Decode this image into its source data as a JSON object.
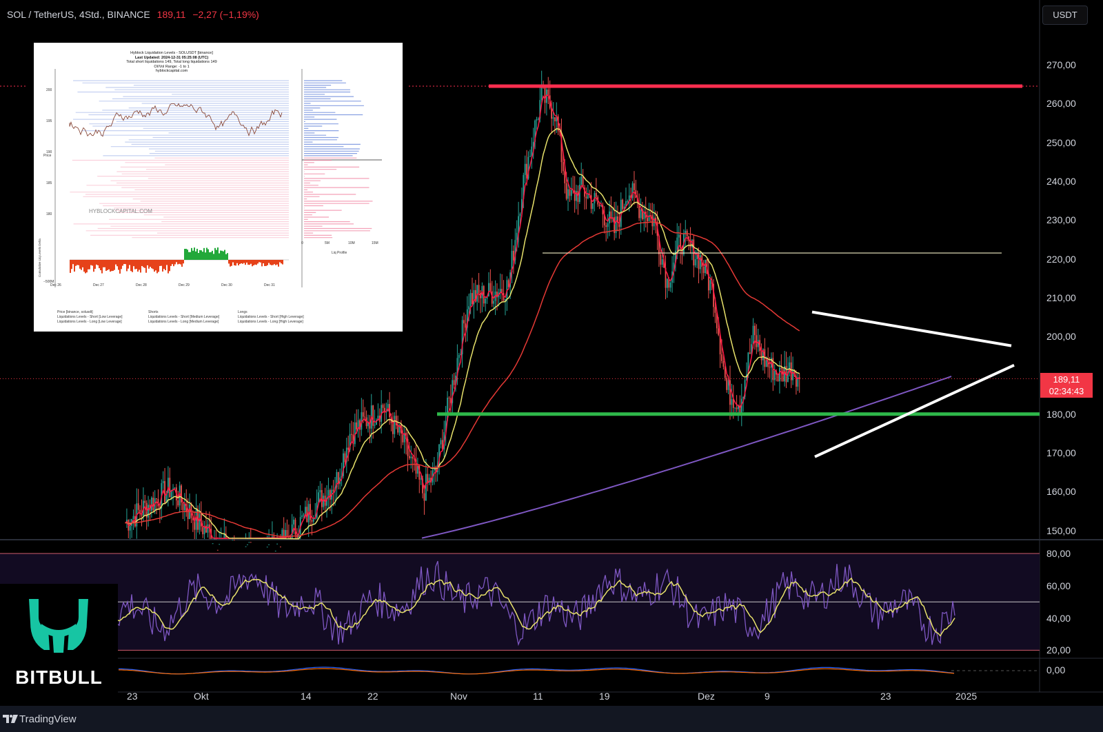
{
  "header": {
    "symbol": "SOL / TetherUS, 4Std., BINANCE",
    "last": "189,11",
    "change": "−2,27 (−1,19%)",
    "currency_button": "USDT"
  },
  "price_badge": {
    "price": "189,11",
    "countdown": "02:34:43"
  },
  "price_axis": [
    "270,00",
    "260,00",
    "250,00",
    "240,00",
    "230,00",
    "220,00",
    "210,00",
    "200,00",
    "180,00",
    "170,00",
    "160,00",
    "150,00"
  ],
  "rsi_axis": [
    "80,00",
    "60,00",
    "40,00",
    "20,00"
  ],
  "macd_axis": [
    "0,00"
  ],
  "time_axis": [
    "23",
    "Okt",
    "14",
    "22",
    "Nov",
    "11",
    "19",
    "Dez",
    "9",
    "23",
    "2025"
  ],
  "brand": {
    "logo_text": "BITBULL",
    "footer_text": "TradingView"
  },
  "colors": {
    "up": "#26a69a",
    "down": "#ef5350",
    "ema_short": "#e8e26b",
    "ema_mid": "#e53935",
    "ema_long": "#7e57c2",
    "resistance": "#ff2e4f",
    "support": "#2eb84a",
    "triangle": "#ffffff",
    "rsi": "#7e57c2",
    "rsi_ma": "#e8e26b"
  },
  "chart_data": {
    "type": "candlestick",
    "symbol": "SOL / TetherUS",
    "interval": "4Std.",
    "exchange": "BINANCE",
    "ylim": [
      148,
      276
    ],
    "close_path": [
      [
        "Sep 20",
        152
      ],
      [
        "Sep 23",
        156
      ],
      [
        "Sep 27",
        161
      ],
      [
        "Okt 1",
        152
      ],
      [
        "Okt 5",
        146
      ],
      [
        "Okt 10",
        143
      ],
      [
        "Okt 14",
        147
      ],
      [
        "Okt 18",
        155
      ],
      [
        "Okt 22",
        163
      ],
      [
        "Okt 24",
        175
      ],
      [
        "Okt 29",
        182
      ],
      [
        "Nov 1",
        173
      ],
      [
        "Nov 4",
        160
      ],
      [
        "Nov 6",
        165
      ],
      [
        "Nov 9",
        192
      ],
      [
        "Nov 11",
        210
      ],
      [
        "Nov 14",
        211
      ],
      [
        "Nov 17",
        213
      ],
      [
        "Nov 19",
        238
      ],
      [
        "Nov 22",
        262
      ],
      [
        "Nov 24",
        258
      ],
      [
        "Nov 26",
        235
      ],
      [
        "Nov 28",
        238
      ],
      [
        "Dez 1",
        233
      ],
      [
        "Dez 3",
        227
      ],
      [
        "Dez 5",
        238
      ],
      [
        "Dez 7",
        233
      ],
      [
        "Dez 9",
        230
      ],
      [
        "Dez 11",
        214
      ],
      [
        "Dez 13",
        225
      ],
      [
        "Dez 16",
        220
      ],
      [
        "Dez 18",
        211
      ],
      [
        "Dez 20",
        186
      ],
      [
        "Dez 22",
        183
      ],
      [
        "Dez 24",
        200
      ],
      [
        "Dez 26",
        193
      ],
      [
        "Dez 28",
        190
      ],
      [
        "Dez 30",
        192
      ],
      [
        "Dez 31",
        189.11
      ]
    ],
    "levels": {
      "resistance": 264.5,
      "support": 180.0,
      "horizontal": 221.5
    },
    "rsi": {
      "upper": 80,
      "middle": 50,
      "lower": 20
    }
  },
  "inset": {
    "title_lines": [
      "Hyblock Liquidation Levels - SOLUSDT [binance]",
      "Last Updated: 2024-12-31 05:25:08 (UTC)",
      "Total short liquidations 149, Total long liquidations 149",
      "OI/Vol Range: -1 to 1",
      "hyblockcapital.com"
    ],
    "y_label": "Price",
    "y_ticks": [
      "200",
      "195",
      "190",
      "185",
      "180"
    ],
    "x_ticks": [
      "Dec 26\n2024",
      "Dec 27",
      "Dec 28",
      "Dec 29",
      "Dec 30",
      "Dec 31"
    ],
    "profile_ticks": [
      "0",
      "5M",
      "10M",
      "15M"
    ],
    "profile_label": "Liq Profile",
    "delta_label": "Cumulative Liq Levels Delta",
    "delta_tick": "−500M",
    "watermark": "HYBLOCKCAPITAL.COM",
    "legend": [
      [
        "Price [binance, solusdt]",
        "Liquidations Levels - Short [Low Leverage]",
        "Liquidations Levels - Long [Low Leverage]"
      ],
      [
        "Shorts",
        "Liquidations Levels - Short [Medium Leverage]",
        "Liquidations Levels - Long [Medium Leverage]"
      ],
      [
        "Longs",
        "Liquidations Levels - Short [High Leverage]",
        "Liquidations Levels - Long [High Leverage]"
      ]
    ]
  }
}
